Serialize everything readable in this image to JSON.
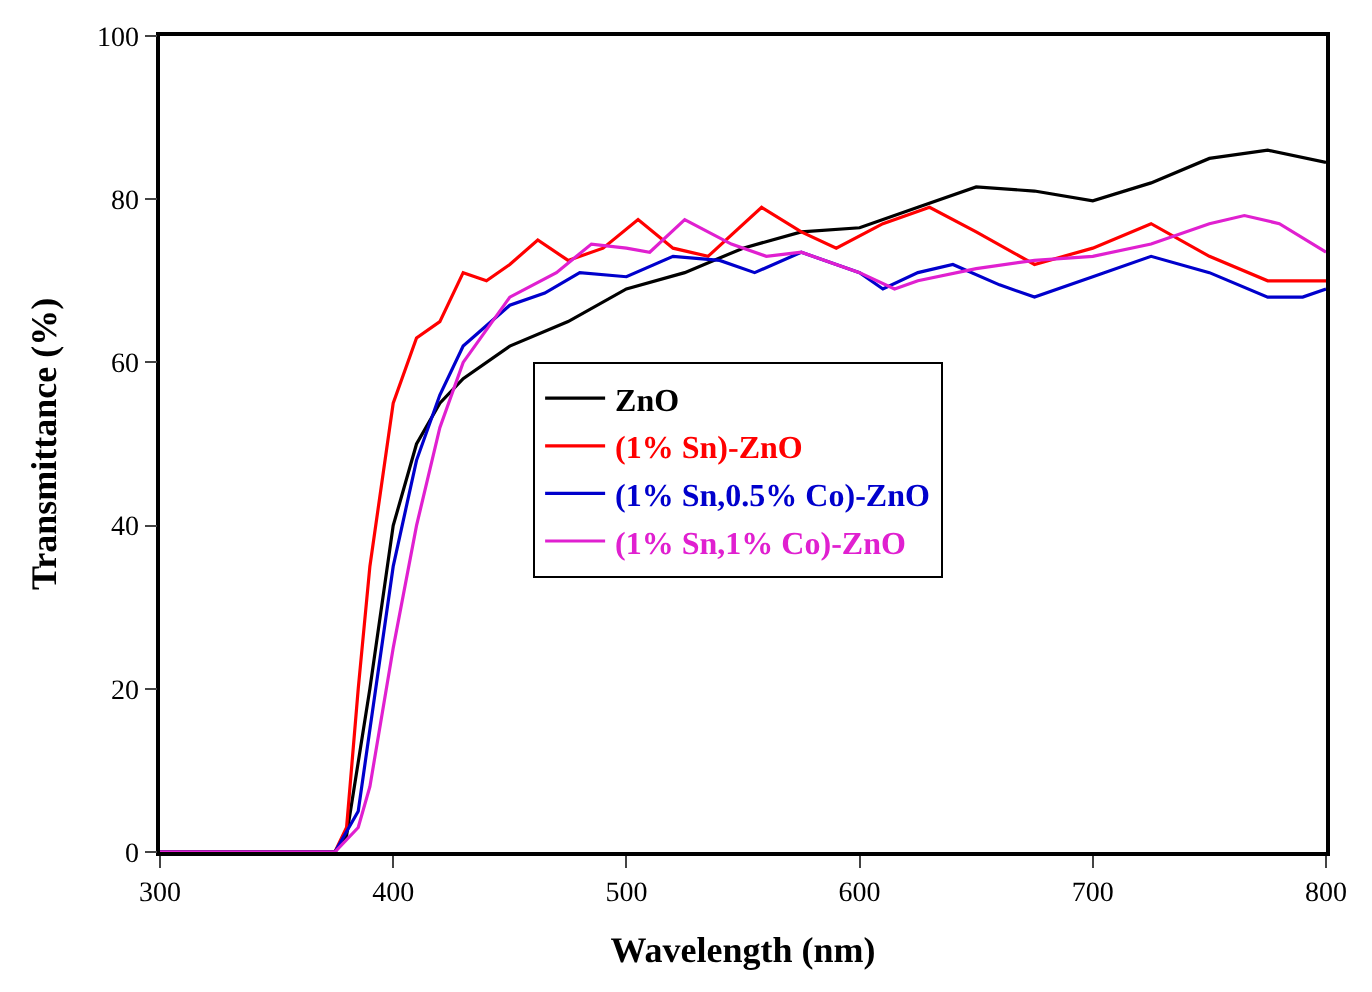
{
  "chart_data": {
    "type": "line",
    "xlabel": "Wavelength (nm)",
    "ylabel": "Transmittance (%)",
    "xlim": [
      300,
      800
    ],
    "xticks": [
      300,
      400,
      500,
      600,
      700,
      800
    ],
    "ylim": [
      0,
      100
    ],
    "yticks": [
      0,
      20,
      40,
      60,
      80,
      100
    ],
    "legend": "center",
    "marker": "none",
    "line_style": "solid",
    "series": [
      {
        "name": "ZnO",
        "color": "#000000",
        "x": [
          300,
          375,
          380,
          390,
          400,
          410,
          420,
          430,
          450,
          475,
          500,
          525,
          550,
          575,
          600,
          625,
          650,
          675,
          700,
          725,
          750,
          775,
          800
        ],
        "values": [
          0,
          0,
          2,
          20,
          40,
          50,
          55,
          58,
          62,
          65,
          69,
          71,
          74,
          76,
          76.5,
          79,
          81.5,
          81,
          79.8,
          82,
          85,
          86,
          84.5
        ]
      },
      {
        "name": "(1% Sn)-ZnO",
        "color": "#ff0000",
        "x": [
          300,
          375,
          380,
          385,
          390,
          395,
          400,
          410,
          420,
          430,
          440,
          450,
          462,
          475,
          490,
          505,
          520,
          535,
          558,
          575,
          590,
          610,
          630,
          650,
          675,
          700,
          725,
          750,
          775,
          800
        ],
        "values": [
          0,
          0,
          3,
          20,
          35,
          45,
          55,
          63,
          65,
          71,
          70,
          72,
          75,
          72.5,
          74,
          77.5,
          74,
          73,
          79,
          76,
          74,
          77,
          79,
          76,
          72,
          74,
          77,
          73,
          70,
          70
        ]
      },
      {
        "name": "(1% Sn,0.5% Co)-ZnO",
        "color": "#0000cc",
        "x": [
          300,
          375,
          385,
          390,
          400,
          410,
          420,
          430,
          450,
          465,
          480,
          500,
          520,
          540,
          555,
          575,
          600,
          610,
          625,
          640,
          660,
          675,
          700,
          725,
          750,
          775,
          790,
          800
        ],
        "values": [
          0,
          0,
          5,
          15,
          35,
          48,
          56,
          62,
          67,
          68.5,
          71,
          70.5,
          73,
          72.5,
          71,
          73.5,
          71,
          69,
          71,
          72,
          69.5,
          68,
          70.5,
          73,
          71,
          68,
          68,
          69
        ]
      },
      {
        "name": "(1% Sn,1% Co)-ZnO",
        "color": "#e020d0",
        "x": [
          300,
          375,
          385,
          390,
          400,
          410,
          420,
          430,
          450,
          470,
          485,
          500,
          510,
          525,
          545,
          560,
          575,
          600,
          615,
          625,
          650,
          675,
          700,
          725,
          750,
          765,
          780,
          800
        ],
        "values": [
          0,
          0,
          3,
          8,
          25,
          40,
          52,
          60,
          68,
          71,
          74.5,
          74,
          73.5,
          77.5,
          74.5,
          73,
          73.5,
          71,
          69,
          70,
          71.5,
          72.5,
          73,
          74.5,
          77,
          78,
          77,
          73.5
        ]
      }
    ]
  }
}
